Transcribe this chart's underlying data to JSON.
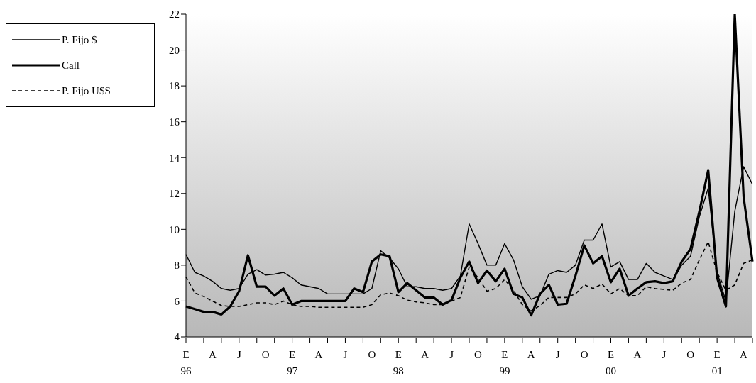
{
  "chart_data": {
    "type": "line",
    "categories": [
      "E\n96",
      null,
      null,
      "A",
      null,
      null,
      "J",
      null,
      null,
      "O",
      null,
      null,
      "E\n97",
      null,
      null,
      "A",
      null,
      null,
      "J",
      null,
      null,
      "O",
      null,
      null,
      "E\n98",
      null,
      null,
      "A",
      null,
      null,
      "J",
      null,
      null,
      "O",
      null,
      null,
      "E\n99",
      null,
      null,
      "A",
      null,
      null,
      "J",
      null,
      null,
      "O",
      null,
      null,
      "E\n00",
      null,
      null,
      "A",
      null,
      null,
      "J",
      null,
      null,
      "O",
      null,
      null,
      "E\n01",
      null,
      null,
      "A",
      null
    ],
    "series": [
      {
        "name": "P. Fijo $",
        "color": "#000000",
        "line_style": "solid",
        "values": [
          8.6,
          7.6,
          7.4,
          7.1,
          6.7,
          6.6,
          6.7,
          7.5,
          7.75,
          7.45,
          7.5,
          7.6,
          7.3,
          6.9,
          6.8,
          6.7,
          6.4,
          6.4,
          6.4,
          6.4,
          6.4,
          6.7,
          8.8,
          8.4,
          7.8,
          6.8,
          6.8,
          6.7,
          6.7,
          6.6,
          6.7,
          7.4,
          10.3,
          9.2,
          8.0,
          8.0,
          9.2,
          8.3,
          6.8,
          6.1,
          6.3,
          7.5,
          7.7,
          7.6,
          8.0,
          9.4,
          9.4,
          10.3,
          7.9,
          8.2,
          7.2,
          7.2,
          8.1,
          7.6,
          7.4,
          7.2,
          8.0,
          8.5,
          10.7,
          12.3,
          7.6,
          6.0,
          11.0,
          13.5,
          12.5
        ]
      },
      {
        "name": "Call",
        "color": "#000000",
        "line_style": "solid",
        "values": [
          5.7,
          5.55,
          5.4,
          5.4,
          5.25,
          5.7,
          6.55,
          8.55,
          6.8,
          6.8,
          6.3,
          6.7,
          5.8,
          6.0,
          6.0,
          6.0,
          6.0,
          6.0,
          6.0,
          6.7,
          6.5,
          8.2,
          8.6,
          8.5,
          6.5,
          7.0,
          6.6,
          6.2,
          6.2,
          5.8,
          6.05,
          7.3,
          8.2,
          7.0,
          7.7,
          7.1,
          7.8,
          6.4,
          6.2,
          5.2,
          6.4,
          6.9,
          5.8,
          5.85,
          7.4,
          9.1,
          8.1,
          8.5,
          7.05,
          7.8,
          6.3,
          6.7,
          7.05,
          7.1,
          7.0,
          7.1,
          8.2,
          8.9,
          11.0,
          13.3,
          7.3,
          5.7,
          22.0,
          11.8,
          8.2
        ]
      },
      {
        "name": "P. Fijo U$S",
        "color": "#000000",
        "line_style": "dashed",
        "values": [
          7.35,
          6.45,
          6.25,
          6.0,
          5.75,
          5.7,
          5.7,
          5.8,
          5.9,
          5.9,
          5.8,
          6.0,
          5.8,
          5.7,
          5.7,
          5.65,
          5.65,
          5.65,
          5.65,
          5.65,
          5.65,
          5.8,
          6.35,
          6.45,
          6.3,
          6.05,
          5.95,
          5.9,
          5.8,
          5.8,
          6.0,
          6.2,
          7.9,
          7.3,
          6.55,
          6.7,
          7.2,
          6.6,
          5.8,
          5.45,
          5.75,
          6.2,
          6.2,
          6.2,
          6.4,
          6.9,
          6.7,
          6.95,
          6.4,
          6.7,
          6.3,
          6.3,
          6.8,
          6.7,
          6.65,
          6.6,
          7.0,
          7.2,
          8.3,
          9.3,
          7.6,
          6.6,
          6.9,
          8.1,
          8.3
        ]
      }
    ],
    "ylim": [
      4,
      22
    ],
    "yticks": [
      4,
      6,
      8,
      10,
      12,
      14,
      16,
      18,
      20,
      22
    ],
    "grid": false,
    "legend": "top left",
    "marker": "none"
  }
}
